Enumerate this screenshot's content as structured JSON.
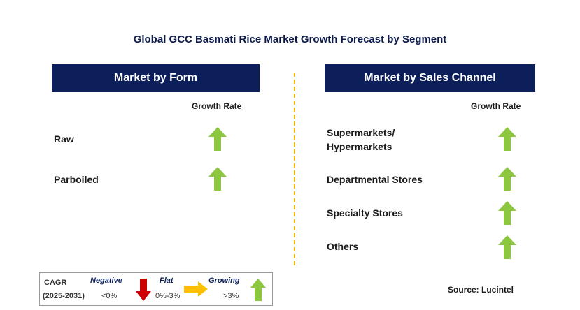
{
  "title": "Global GCC Basmati Rice Market Growth Forecast by Segment",
  "left_panel": {
    "header": "Market by Form",
    "growth_label": "Growth Rate",
    "rows": [
      {
        "label": "Raw",
        "trend": "growing"
      },
      {
        "label": "Parboiled",
        "trend": "growing"
      }
    ]
  },
  "right_panel": {
    "header": "Market by Sales Channel",
    "growth_label": "Growth Rate",
    "rows": [
      {
        "label": "Supermarkets/ Hypermarkets",
        "line1": "Supermarkets/",
        "line2": "Hypermarkets",
        "trend": "growing"
      },
      {
        "label": "Departmental Stores",
        "trend": "growing"
      },
      {
        "label": "Specialty Stores",
        "trend": "growing"
      },
      {
        "label": "Others",
        "trend": "growing"
      }
    ]
  },
  "legend": {
    "cagr": "CAGR",
    "period": "(2025-2031)",
    "negative": {
      "label": "Negative",
      "range": "<0%",
      "icon": "red-down-arrow-icon",
      "color": "#cc0000"
    },
    "flat": {
      "label": "Flat",
      "range": "0%-3%",
      "icon": "orange-right-arrow-icon",
      "color": "#ffc000"
    },
    "growing": {
      "label": "Growing",
      "range": ">3%",
      "icon": "green-up-arrow-icon",
      "color": "#8dc63f"
    }
  },
  "source": "Source: Lucintel",
  "colors": {
    "header_bg": "#0c1f5a",
    "divider": "#f0b400",
    "growing_arrow": "#8dc63f"
  }
}
